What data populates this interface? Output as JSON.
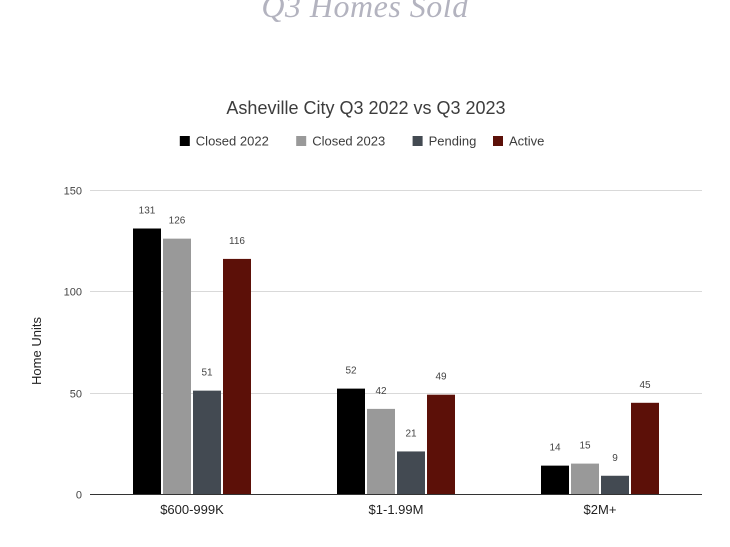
{
  "page_title": "Q3 Homes Sold",
  "chart_data": {
    "type": "bar",
    "title": "Asheville City Q3 2022 vs Q3 2023",
    "xlabel": "",
    "ylabel": "Home Units",
    "ylim": [
      0,
      150
    ],
    "yticks": [
      0,
      50,
      100,
      150
    ],
    "grid": true,
    "legend_position": "top",
    "categories": [
      "$600-999K",
      "$1-1.99M",
      "$2M+"
    ],
    "series": [
      {
        "name": "Closed  2022",
        "color": "#000000",
        "values": [
          131,
          52,
          14
        ]
      },
      {
        "name": "Closed  2023",
        "color": "#999999",
        "values": [
          126,
          42,
          15
        ]
      },
      {
        "name": "Pending",
        "color": "#434a52",
        "values": [
          51,
          21,
          9
        ]
      },
      {
        "name": "Active",
        "color": "#5c1008",
        "values": [
          116,
          49,
          45
        ]
      }
    ]
  }
}
